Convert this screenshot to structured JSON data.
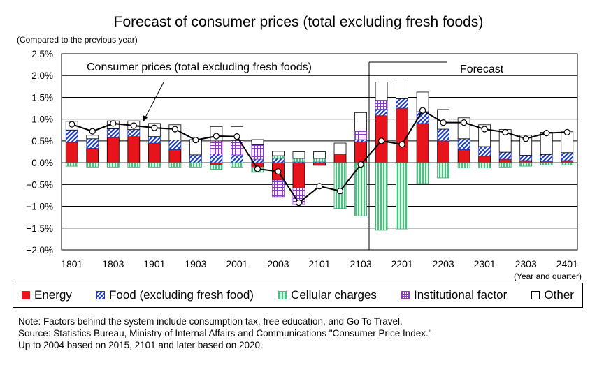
{
  "chart_data": {
    "type": "bar",
    "title": "Forecast of consumer prices (total excluding fresh foods)",
    "ylabel": "(Compared to the previous year)",
    "xlabel": "(Year and quarter)",
    "ylim": [
      -2.0,
      2.5
    ],
    "y_ticks": [
      "2.5%",
      "2.0%",
      "1.5%",
      "1.0%",
      "0.5%",
      "0.0%",
      "−0.5%",
      "−1.0%",
      "−1.5%",
      "−2.0%"
    ],
    "y_tick_values": [
      2.5,
      2.0,
      1.5,
      1.0,
      0.5,
      0.0,
      -0.5,
      -1.0,
      -1.5,
      -2.0
    ],
    "grid": true,
    "stacked": true,
    "legend_position": "bottom",
    "categories": [
      "1801",
      "1802",
      "1803",
      "1804",
      "1901",
      "1902",
      "1903",
      "1904",
      "2001",
      "2002",
      "2003",
      "2004",
      "2101",
      "2102",
      "2103",
      "2104",
      "2201",
      "2202",
      "2203",
      "2204",
      "2301",
      "2302",
      "2303",
      "2304",
      "2401"
    ],
    "x_tick_labels": [
      "1801",
      "1803",
      "1901",
      "1903",
      "2001",
      "2003",
      "2101",
      "2103",
      "2201",
      "2203",
      "2301",
      "2303",
      "2401"
    ],
    "series": [
      {
        "name": "Energy",
        "color": "#e8141c",
        "pattern": "solid",
        "values": [
          0.47,
          0.33,
          0.58,
          0.6,
          0.45,
          0.3,
          0,
          -0.05,
          0,
          -0.1,
          -0.4,
          -0.58,
          -0.06,
          0.2,
          0.48,
          1.08,
          1.25,
          0.9,
          0.5,
          0.3,
          0.15,
          0.08,
          0.05,
          0.04,
          0.05
        ]
      },
      {
        "name": "Food (excluding fresh food)",
        "color": "#1f3fbf",
        "pattern": "diagonal",
        "values": [
          0.28,
          0.22,
          0.2,
          0.16,
          0.15,
          0.22,
          0.18,
          0.2,
          0.18,
          0.08,
          0.1,
          0.02,
          0.02,
          0,
          0.05,
          0.15,
          0.22,
          0.27,
          0.27,
          0.25,
          0.22,
          0.16,
          0.12,
          0.15,
          0.18
        ]
      },
      {
        "name": "Cellular charges",
        "color": "#7fd3a8",
        "pattern": "vertical",
        "values": [
          -0.08,
          -0.1,
          -0.1,
          -0.1,
          -0.1,
          -0.1,
          -0.1,
          -0.1,
          -0.1,
          -0.12,
          0.06,
          0.08,
          0.08,
          -1.05,
          -1.22,
          -1.55,
          -1.52,
          -0.48,
          -0.35,
          -0.12,
          -0.12,
          -0.1,
          -0.08,
          -0.05,
          -0.05
        ]
      },
      {
        "name": "Institutional factor",
        "color": "#9c4dcc",
        "pattern": "grid",
        "values": [
          0,
          0,
          0,
          0,
          0,
          0,
          0,
          0.3,
          0.33,
          0.33,
          -0.38,
          -0.38,
          0,
          0,
          0.2,
          0.2,
          0,
          0,
          0,
          0,
          0,
          0,
          0,
          0,
          0
        ]
      },
      {
        "name": "Other",
        "color": "#ffffff",
        "pattern": "outline",
        "values": [
          0.2,
          0.08,
          0.18,
          0.2,
          0.3,
          0.35,
          0.35,
          0.33,
          0.32,
          0.12,
          0.1,
          0.15,
          0.15,
          0.25,
          0.42,
          0.42,
          0.43,
          0.45,
          0.45,
          0.48,
          0.5,
          0.52,
          0.46,
          0.51,
          0.48
        ]
      }
    ],
    "line_series": {
      "name": "Consumer prices (total excluding fresh foods)",
      "values": [
        0.88,
        0.72,
        0.9,
        0.85,
        0.8,
        0.77,
        0.52,
        0.61,
        0.6,
        -0.14,
        -0.2,
        -0.92,
        -0.54,
        -0.65,
        -0.04,
        0.5,
        0.42,
        1.2,
        0.92,
        0.92,
        0.77,
        0.7,
        0.55,
        0.68,
        0.7
      ]
    },
    "annotations": [
      {
        "text": "Consumer prices (total excluding fresh foods)"
      },
      {
        "text": "Forecast"
      }
    ]
  },
  "legend": [
    {
      "label": "Energy"
    },
    {
      "label": "Food (excluding fresh food)"
    },
    {
      "label": "Cellular charges"
    },
    {
      "label": "Institutional factor"
    },
    {
      "label": "Other"
    }
  ],
  "notes": [
    "Note: Factors behind the system include consumption tax, free education, and Go To Travel.",
    "Source: Statistics Bureau, Ministry of Internal Affairs and Communications \"Consumer Price Index.\"",
    "Up to 2004 based on 2015, 2101 and later based on 2020."
  ]
}
